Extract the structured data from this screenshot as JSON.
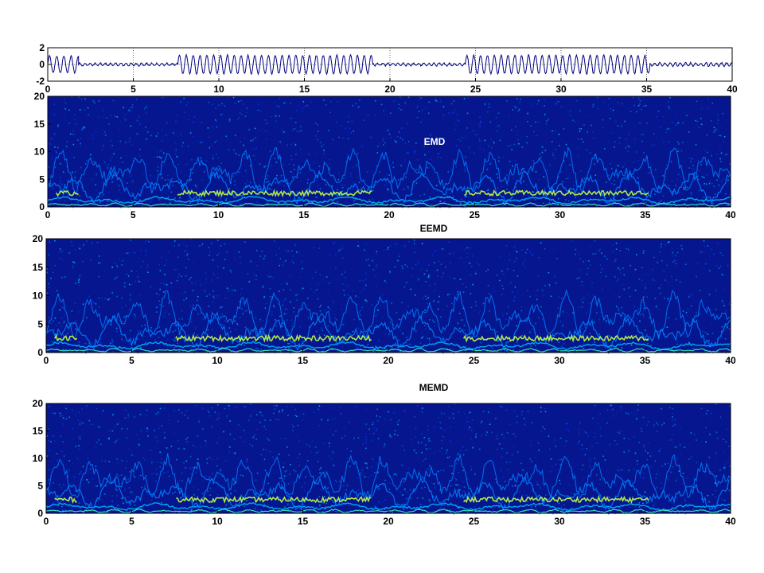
{
  "chart_data": [
    {
      "type": "line",
      "title": "",
      "xlabel": "",
      "ylabel": "",
      "xlim": [
        0,
        40
      ],
      "ylim": [
        -2,
        2
      ],
      "xticks": [
        0,
        5,
        10,
        15,
        20,
        25,
        30,
        35,
        40
      ],
      "yticks": [
        -2,
        0,
        2
      ],
      "grid": true,
      "line_color": "#00007f",
      "series": [
        {
          "segments": [
            {
              "x": [
                0,
                1.8
              ],
              "amplitude": 1.0,
              "period": 0.42
            },
            {
              "x": [
                1.8,
                7.6
              ],
              "amplitude": 0.15,
              "period": 0.3
            },
            {
              "x": [
                7.6,
                19.0
              ],
              "amplitude": 1.1,
              "period": 0.4
            },
            {
              "x": [
                19.0,
                24.4
              ],
              "amplitude": 0.15,
              "period": 0.3
            },
            {
              "x": [
                24.4,
                35.2
              ],
              "amplitude": 1.1,
              "period": 0.4
            },
            {
              "x": [
                35.2,
                40
              ],
              "amplitude": 0.2,
              "period": 0.3
            }
          ]
        }
      ]
    },
    {
      "type": "heatmap",
      "title": "EMD",
      "xlim": [
        0,
        40
      ],
      "ylim": [
        0,
        20
      ],
      "xticks": [
        0,
        5,
        10,
        15,
        20,
        25,
        30,
        35,
        40
      ],
      "yticks": [
        0,
        5,
        10,
        15,
        20
      ],
      "background": "#06168f",
      "ridge_y": 2.5,
      "ridge_segments": [
        [
          0.5,
          1.8
        ],
        [
          7.6,
          19.0
        ],
        [
          24.4,
          35.2
        ]
      ],
      "colormap": [
        "#0040ff",
        "#0080ff",
        "#00c0ff",
        "#40ffc0",
        "#c0ff40",
        "#ffa040"
      ]
    },
    {
      "type": "heatmap",
      "title": "EEMD",
      "xlim": [
        0,
        40
      ],
      "ylim": [
        0,
        20
      ],
      "xticks": [
        0,
        5,
        10,
        15,
        20,
        25,
        30,
        35,
        40
      ],
      "yticks": [
        0,
        5,
        10,
        15,
        20
      ],
      "background": "#06168f",
      "ridge_y": 2.5,
      "ridge_segments": [
        [
          0.5,
          1.8
        ],
        [
          7.6,
          19.0
        ],
        [
          24.4,
          35.2
        ]
      ],
      "colormap": [
        "#0040ff",
        "#0080ff",
        "#00c0ff",
        "#40ffc0",
        "#c0ff40",
        "#ffa040"
      ]
    },
    {
      "type": "heatmap",
      "title": "MEMD",
      "xlim": [
        0,
        40
      ],
      "ylim": [
        0,
        20
      ],
      "xticks": [
        0,
        5,
        10,
        15,
        20,
        25,
        30,
        35,
        40
      ],
      "yticks": [
        0,
        5,
        10,
        15,
        20
      ],
      "background": "#06168f",
      "ridge_y": 2.5,
      "ridge_segments": [
        [
          0.5,
          1.8
        ],
        [
          7.6,
          19.0
        ],
        [
          24.4,
          35.2
        ]
      ],
      "colormap": [
        "#0040ff",
        "#0080ff",
        "#00c0ff",
        "#40ffc0",
        "#c0ff40",
        "#ffa040"
      ]
    }
  ]
}
